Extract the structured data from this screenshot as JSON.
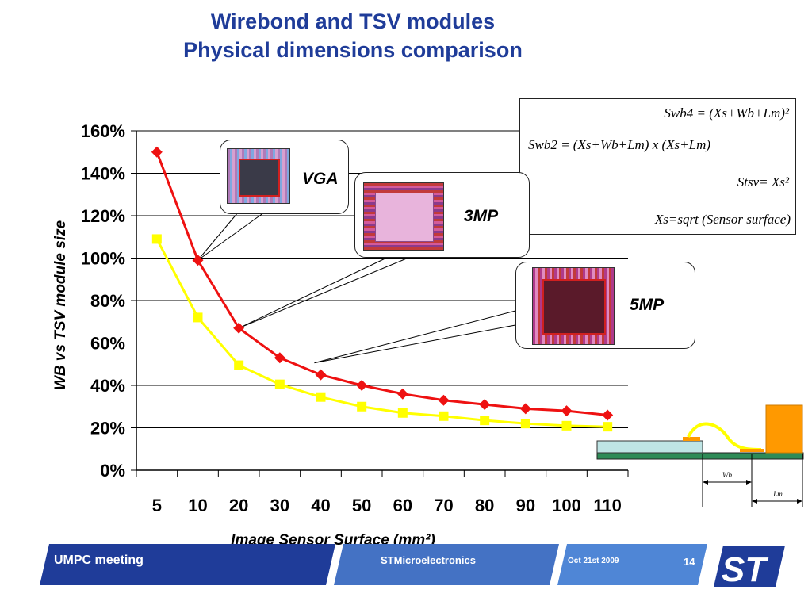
{
  "slide": {
    "title_line1": "Wirebond and TSV modules",
    "title_line2": "Physical dimensions comparison"
  },
  "formulas": {
    "swb4": "Swb4 = (Xs+Wb+Lm)²",
    "swb2": "Swb2 = (Xs+Wb+Lm)  x (Xs+Lm)",
    "stsv": "Stsv= Xs²",
    "xs": "Xs=sqrt (Sensor surface)"
  },
  "callouts": {
    "vga": "VGA",
    "mp3": "3MP",
    "mp5": "5MP"
  },
  "diagram": {
    "wb_label": "Wb",
    "lm_label": "Lm"
  },
  "chart_data": {
    "type": "line",
    "categories": [
      "5",
      "10",
      "20",
      "30",
      "40",
      "50",
      "60",
      "70",
      "80",
      "90",
      "100",
      "110"
    ],
    "series": [
      {
        "values": [
          150,
          99,
          67,
          53,
          45,
          40,
          36,
          33,
          31,
          29,
          28,
          26
        ],
        "color": "#ee1111",
        "marker": "diamond"
      },
      {
        "values": [
          109,
          72,
          49.5,
          40.5,
          34.5,
          30,
          27,
          25.5,
          23.5,
          22,
          21,
          20.5
        ],
        "color": "#ffff00",
        "marker": "square"
      }
    ],
    "ylabel": "WB vs TSV module size",
    "xlabel": "Image Sensor Surface (mm²)",
    "ylim": [
      0,
      160
    ],
    "yticks": [
      "0%",
      "20%",
      "40%",
      "60%",
      "80%",
      "100%",
      "120%",
      "140%",
      "160%"
    ],
    "grid": true
  },
  "footer": {
    "meeting": "UMPC meeting",
    "company": "STMicroelectronics",
    "date": "Oct 21st  2009",
    "page": "14",
    "logo_text": "ST"
  },
  "colors": {
    "title": "#1f3c99",
    "footer_dark": "#1f3c99",
    "footer_mid": "#4472c4",
    "footer_light": "#4f86d6"
  }
}
